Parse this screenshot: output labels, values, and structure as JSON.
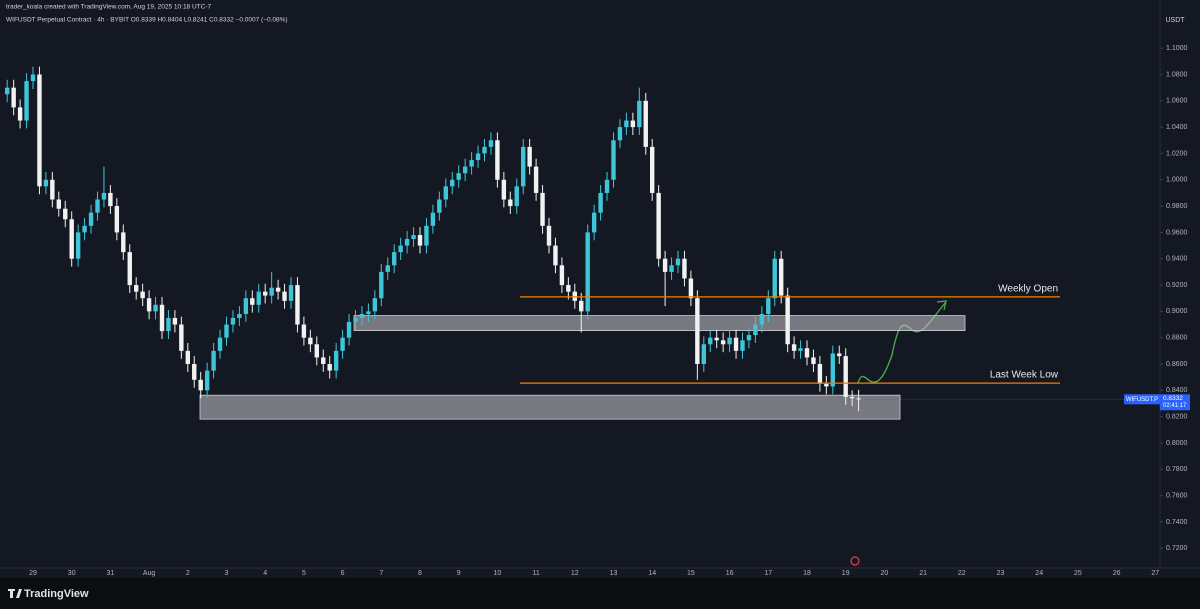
{
  "header": {
    "attribution": "trader_koala created with TradingView.com, Aug 19, 2025 10:18 UTC-7",
    "legend": "WIFUSDT Perpetual Contract · 4h · BYBIT  O0.8339  H0.8404  L0.8241  C0.8332  −0.0007 (−0.08%)",
    "currency": "USDT"
  },
  "footer": {
    "brand": "TradingView"
  },
  "chart_data": {
    "type": "candlestick",
    "up_color": "#3ec6d8",
    "down_color": "#f2f2f2",
    "ylim": [
      0.705,
      1.129
    ],
    "yticks": [
      {
        "value": 0.72,
        "label": "0.7200"
      },
      {
        "value": 0.74,
        "label": "0.7400"
      },
      {
        "value": 0.76,
        "label": "0.7600"
      },
      {
        "value": 0.78,
        "label": "0.7800"
      },
      {
        "value": 0.8,
        "label": "0.8000"
      },
      {
        "value": 0.82,
        "label": "0.8200"
      },
      {
        "value": 0.84,
        "label": "0.8400"
      },
      {
        "value": 0.86,
        "label": "0.8600"
      },
      {
        "value": 0.88,
        "label": "0.8800"
      },
      {
        "value": 0.9,
        "label": "0.9000"
      },
      {
        "value": 0.92,
        "label": "0.9200"
      },
      {
        "value": 0.94,
        "label": "0.9400"
      },
      {
        "value": 0.96,
        "label": "0.9600"
      },
      {
        "value": 0.98,
        "label": "0.9800"
      },
      {
        "value": 1.0,
        "label": "1.0000"
      },
      {
        "value": 1.02,
        "label": "1.0200"
      },
      {
        "value": 1.04,
        "label": "1.0400"
      },
      {
        "value": 1.06,
        "label": "1.0600"
      },
      {
        "value": 1.08,
        "label": "1.0800"
      },
      {
        "value": 1.1,
        "label": "1.1000"
      }
    ],
    "grid": false,
    "xtick_labels": [
      "29",
      "30",
      "31",
      "Aug",
      "2",
      "3",
      "4",
      "5",
      "6",
      "7",
      "8",
      "9",
      "10",
      "11",
      "12",
      "13",
      "14",
      "15",
      "16",
      "17",
      "18",
      "19",
      "20",
      "21",
      "22",
      "23",
      "24",
      "25",
      "26",
      "27"
    ],
    "candles": [
      [
        1.065,
        1.076,
        1.059,
        1.07
      ],
      [
        1.07,
        1.076,
        1.049,
        1.055
      ],
      [
        1.055,
        1.061,
        1.039,
        1.045
      ],
      [
        1.045,
        1.081,
        1.039,
        1.075
      ],
      [
        1.075,
        1.086,
        1.069,
        1.08
      ],
      [
        1.08,
        1.086,
        0.989,
        0.995
      ],
      [
        0.995,
        1.006,
        0.989,
        1.0
      ],
      [
        1.0,
        1.006,
        0.979,
        0.985
      ],
      [
        0.985,
        0.991,
        0.972,
        0.978
      ],
      [
        0.978,
        0.984,
        0.964,
        0.97
      ],
      [
        0.97,
        0.976,
        0.934,
        0.94
      ],
      [
        0.94,
        0.966,
        0.934,
        0.96
      ],
      [
        0.96,
        0.971,
        0.954,
        0.965
      ],
      [
        0.965,
        0.981,
        0.959,
        0.975
      ],
      [
        0.975,
        0.991,
        0.969,
        0.985
      ],
      [
        0.985,
        1.01,
        0.979,
        0.99
      ],
      [
        0.99,
        0.996,
        0.974,
        0.98
      ],
      [
        0.98,
        0.986,
        0.954,
        0.96
      ],
      [
        0.96,
        0.966,
        0.939,
        0.945
      ],
      [
        0.945,
        0.951,
        0.914,
        0.92
      ],
      [
        0.92,
        0.926,
        0.909,
        0.915
      ],
      [
        0.915,
        0.921,
        0.904,
        0.91
      ],
      [
        0.91,
        0.916,
        0.894,
        0.9
      ],
      [
        0.9,
        0.911,
        0.894,
        0.905
      ],
      [
        0.905,
        0.911,
        0.879,
        0.885
      ],
      [
        0.885,
        0.901,
        0.879,
        0.895
      ],
      [
        0.895,
        0.901,
        0.884,
        0.89
      ],
      [
        0.89,
        0.896,
        0.864,
        0.87
      ],
      [
        0.87,
        0.876,
        0.854,
        0.86
      ],
      [
        0.86,
        0.866,
        0.842,
        0.848
      ],
      [
        0.848,
        0.854,
        0.834,
        0.84
      ],
      [
        0.84,
        0.861,
        0.834,
        0.855
      ],
      [
        0.855,
        0.876,
        0.849,
        0.87
      ],
      [
        0.87,
        0.886,
        0.864,
        0.88
      ],
      [
        0.88,
        0.896,
        0.874,
        0.89
      ],
      [
        0.89,
        0.901,
        0.884,
        0.895
      ],
      [
        0.895,
        0.904,
        0.889,
        0.898
      ],
      [
        0.898,
        0.916,
        0.892,
        0.91
      ],
      [
        0.91,
        0.916,
        0.899,
        0.905
      ],
      [
        0.905,
        0.921,
        0.899,
        0.915
      ],
      [
        0.915,
        0.921,
        0.906,
        0.912
      ],
      [
        0.912,
        0.93,
        0.906,
        0.918
      ],
      [
        0.918,
        0.924,
        0.909,
        0.915
      ],
      [
        0.915,
        0.921,
        0.902,
        0.908
      ],
      [
        0.908,
        0.926,
        0.902,
        0.92
      ],
      [
        0.92,
        0.926,
        0.884,
        0.89
      ],
      [
        0.89,
        0.896,
        0.874,
        0.88
      ],
      [
        0.88,
        0.886,
        0.869,
        0.875
      ],
      [
        0.875,
        0.881,
        0.859,
        0.865
      ],
      [
        0.865,
        0.871,
        0.854,
        0.86
      ],
      [
        0.86,
        0.866,
        0.849,
        0.855
      ],
      [
        0.855,
        0.876,
        0.849,
        0.87
      ],
      [
        0.87,
        0.886,
        0.864,
        0.88
      ],
      [
        0.88,
        0.898,
        0.874,
        0.892
      ],
      [
        0.892,
        0.901,
        0.886,
        0.895
      ],
      [
        0.895,
        0.904,
        0.889,
        0.898
      ],
      [
        0.898,
        0.906,
        0.892,
        0.9
      ],
      [
        0.9,
        0.916,
        0.894,
        0.91
      ],
      [
        0.91,
        0.936,
        0.904,
        0.93
      ],
      [
        0.93,
        0.941,
        0.924,
        0.935
      ],
      [
        0.935,
        0.951,
        0.929,
        0.945
      ],
      [
        0.945,
        0.956,
        0.939,
        0.95
      ],
      [
        0.95,
        0.961,
        0.944,
        0.955
      ],
      [
        0.955,
        0.964,
        0.949,
        0.958
      ],
      [
        0.958,
        0.964,
        0.944,
        0.95
      ],
      [
        0.95,
        0.971,
        0.944,
        0.965
      ],
      [
        0.965,
        0.981,
        0.959,
        0.975
      ],
      [
        0.975,
        0.991,
        0.969,
        0.985
      ],
      [
        0.985,
        1.001,
        0.979,
        0.995
      ],
      [
        0.995,
        1.006,
        0.989,
        1.0
      ],
      [
        1.0,
        1.011,
        0.994,
        1.005
      ],
      [
        1.005,
        1.016,
        0.999,
        1.01
      ],
      [
        1.01,
        1.021,
        1.004,
        1.015
      ],
      [
        1.015,
        1.026,
        1.009,
        1.02
      ],
      [
        1.02,
        1.031,
        1.014,
        1.025
      ],
      [
        1.025,
        1.036,
        1.019,
        1.03
      ],
      [
        1.03,
        1.036,
        0.994,
        1.0
      ],
      [
        1.0,
        1.006,
        0.979,
        0.985
      ],
      [
        0.985,
        0.991,
        0.974,
        0.98
      ],
      [
        0.98,
        1.001,
        0.974,
        0.995
      ],
      [
        0.995,
        1.031,
        0.989,
        1.025
      ],
      [
        1.025,
        1.031,
        1.004,
        1.01
      ],
      [
        1.01,
        1.016,
        0.984,
        0.99
      ],
      [
        0.99,
        0.996,
        0.959,
        0.965
      ],
      [
        0.965,
        0.971,
        0.944,
        0.95
      ],
      [
        0.95,
        0.956,
        0.929,
        0.935
      ],
      [
        0.935,
        0.941,
        0.914,
        0.92
      ],
      [
        0.92,
        0.926,
        0.909,
        0.915
      ],
      [
        0.915,
        0.921,
        0.902,
        0.908
      ],
      [
        0.908,
        0.914,
        0.884,
        0.9
      ],
      [
        0.9,
        0.966,
        0.894,
        0.96
      ],
      [
        0.96,
        0.981,
        0.954,
        0.975
      ],
      [
        0.975,
        0.996,
        0.969,
        0.99
      ],
      [
        0.99,
        1.006,
        0.984,
        1.0
      ],
      [
        1.0,
        1.036,
        0.994,
        1.03
      ],
      [
        1.03,
        1.046,
        1.024,
        1.04
      ],
      [
        1.04,
        1.051,
        1.034,
        1.045
      ],
      [
        1.045,
        1.051,
        1.034,
        1.04
      ],
      [
        1.04,
        1.07,
        1.034,
        1.06
      ],
      [
        1.06,
        1.066,
        1.019,
        1.025
      ],
      [
        1.025,
        1.031,
        0.984,
        0.99
      ],
      [
        0.99,
        0.996,
        0.934,
        0.94
      ],
      [
        0.94,
        0.946,
        0.904,
        0.93
      ],
      [
        0.93,
        0.941,
        0.924,
        0.935
      ],
      [
        0.935,
        0.946,
        0.929,
        0.94
      ],
      [
        0.94,
        0.946,
        0.919,
        0.925
      ],
      [
        0.925,
        0.931,
        0.904,
        0.91
      ],
      [
        0.91,
        0.916,
        0.848,
        0.86
      ],
      [
        0.86,
        0.881,
        0.854,
        0.875
      ],
      [
        0.875,
        0.886,
        0.869,
        0.88
      ],
      [
        0.88,
        0.886,
        0.872,
        0.878
      ],
      [
        0.878,
        0.884,
        0.869,
        0.875
      ],
      [
        0.875,
        0.886,
        0.869,
        0.88
      ],
      [
        0.88,
        0.886,
        0.864,
        0.87
      ],
      [
        0.87,
        0.884,
        0.864,
        0.878
      ],
      [
        0.878,
        0.888,
        0.872,
        0.882
      ],
      [
        0.882,
        0.896,
        0.876,
        0.89
      ],
      [
        0.89,
        0.904,
        0.884,
        0.898
      ],
      [
        0.898,
        0.916,
        0.892,
        0.91
      ],
      [
        0.91,
        0.946,
        0.904,
        0.94
      ],
      [
        0.94,
        0.946,
        0.906,
        0.912
      ],
      [
        0.912,
        0.918,
        0.869,
        0.875
      ],
      [
        0.875,
        0.881,
        0.864,
        0.87
      ],
      [
        0.87,
        0.878,
        0.864,
        0.872
      ],
      [
        0.872,
        0.878,
        0.859,
        0.865
      ],
      [
        0.865,
        0.871,
        0.854,
        0.86
      ],
      [
        0.86,
        0.866,
        0.839,
        0.845
      ],
      [
        0.845,
        0.851,
        0.837,
        0.843
      ],
      [
        0.843,
        0.874,
        0.837,
        0.868
      ],
      [
        0.868,
        0.874,
        0.86,
        0.866
      ],
      [
        0.866,
        0.872,
        0.829,
        0.835
      ],
      [
        0.835,
        0.84,
        0.828,
        0.834
      ],
      [
        0.8339,
        0.8404,
        0.8241,
        0.8332
      ]
    ],
    "levels": [
      {
        "name": "Weekly Open",
        "value": 0.911,
        "color": "#f57c00"
      },
      {
        "name": "Last Week Low",
        "value": 0.8455,
        "color": "#f57c00"
      }
    ],
    "zones": [
      {
        "from": 0.8854,
        "to": 0.8968
      },
      {
        "from": 0.8181,
        "to": 0.8363
      }
    ],
    "price_tag": {
      "symbol": "WIFUSDT.P",
      "countdown": "02:41:17",
      "color": "#2962ff"
    }
  }
}
